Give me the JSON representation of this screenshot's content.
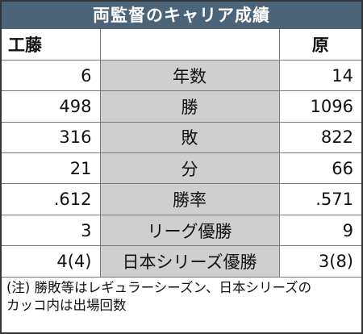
{
  "title": "両監督のキャリア成績",
  "header": {
    "left": "工藤",
    "right": "原"
  },
  "rows": [
    {
      "left": "6",
      "label": "年数",
      "right": "14"
    },
    {
      "left": "498",
      "label": "勝",
      "right": "1096"
    },
    {
      "left": "316",
      "label": "敗",
      "right": "822"
    },
    {
      "left": "21",
      "label": "分",
      "right": "66"
    },
    {
      "left": ".612",
      "label": "勝率",
      "right": ".571"
    },
    {
      "left": "3",
      "label": "リーグ優勝",
      "right": "9"
    },
    {
      "left": "4(4)",
      "label": "日本シリーズ優勝",
      "right": "3(8)"
    }
  ],
  "note": {
    "line1": "(注) 勝敗等はレギュラーシーズン、日本シリーズの",
    "line2": "カッコ内は出場回数"
  }
}
